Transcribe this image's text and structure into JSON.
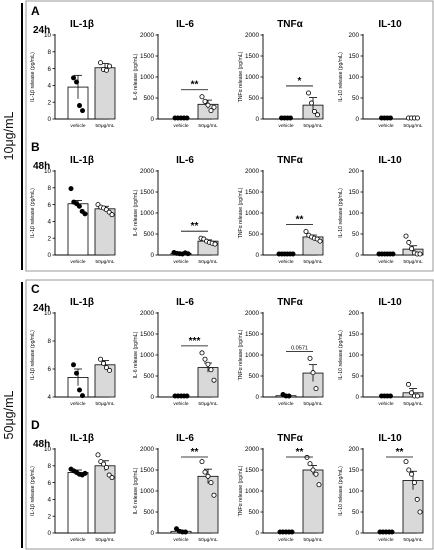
{
  "figure": {
    "side_labels": [
      "10μg/mL",
      "50μg/mL"
    ]
  },
  "chart_data": [
    {
      "panel": "A",
      "time": "24h",
      "type": "bar",
      "charts": [
        {
          "title": "IL-1β",
          "ylabel": "IL-1β release (pg/mL)",
          "ylim": [
            0,
            10
          ],
          "yticks": [
            0,
            2,
            4,
            6,
            8,
            10
          ],
          "categories": [
            "vehicle",
            "50μg/mL"
          ],
          "values": [
            3.8,
            6.1
          ],
          "errors": [
            1.4,
            0.5
          ],
          "points": [
            [
              4.9,
              4.4,
              1.6,
              1.0
            ],
            [
              6.7,
              5.9,
              5.8,
              6.3
            ]
          ],
          "sig": ""
        },
        {
          "title": "IL-6",
          "ylabel": "IL-6 release (pg/mL)",
          "ylim": [
            0,
            2000
          ],
          "yticks": [
            0,
            500,
            1000,
            1500,
            2000
          ],
          "categories": [
            "vehicle",
            "50μg/mL"
          ],
          "values": [
            0,
            350
          ],
          "errors": [
            0,
            100
          ],
          "points": [
            [
              0,
              0,
              0,
              0,
              0
            ],
            [
              530,
              420,
              330,
              200,
              280
            ]
          ],
          "sig": "**"
        },
        {
          "title": "TNFα",
          "ylabel": "TNFα release (pg/mL)",
          "ylim": [
            0,
            2000
          ],
          "yticks": [
            0,
            500,
            1000,
            1500,
            2000
          ],
          "categories": [
            "vehicle",
            "50μg/mL"
          ],
          "values": [
            0,
            330
          ],
          "errors": [
            0,
            180
          ],
          "points": [
            [
              0,
              0,
              0,
              0
            ],
            [
              620,
              380,
              180,
              100
            ]
          ],
          "sig": "*"
        },
        {
          "title": "IL-10",
          "ylabel": "IL-10 release (pg/mL)",
          "ylim": [
            0,
            200
          ],
          "yticks": [
            0,
            50,
            100,
            150,
            200
          ],
          "categories": [
            "vehicle",
            "50μg/mL"
          ],
          "values": [
            0,
            0
          ],
          "errors": [
            0,
            0
          ],
          "points": [
            [
              0,
              0,
              0,
              0
            ],
            [
              0,
              0,
              0,
              0
            ]
          ],
          "sig": ""
        }
      ]
    },
    {
      "panel": "B",
      "time": "48h",
      "type": "bar",
      "charts": [
        {
          "title": "IL-1β",
          "ylabel": "IL-1β release (pg/mL)",
          "ylim": [
            0,
            10
          ],
          "yticks": [
            0,
            2,
            4,
            6,
            8,
            10
          ],
          "categories": [
            "vehicle",
            "50μg/mL"
          ],
          "values": [
            6.1,
            5.5
          ],
          "errors": [
            0.4,
            0.3
          ],
          "points": [
            [
              7.9,
              6.3,
              6.1,
              5.8,
              5.2,
              4.9
            ],
            [
              6.0,
              5.7,
              5.6,
              5.4,
              5.1,
              4.8
            ]
          ],
          "sig": ""
        },
        {
          "title": "IL-6",
          "ylabel": "IL-6 release (pg/mL)",
          "ylim": [
            0,
            2000
          ],
          "yticks": [
            0,
            500,
            1000,
            1500,
            2000
          ],
          "categories": [
            "vehicle",
            "50μg/mL"
          ],
          "values": [
            40,
            330
          ],
          "errors": [
            15,
            30
          ],
          "points": [
            [
              60,
              40,
              30,
              20,
              50,
              30
            ],
            [
              400,
              380,
              330,
              300,
              280,
              260
            ]
          ],
          "sig": "**"
        },
        {
          "title": "TNFα",
          "ylabel": "TNFα release (pg/mL)",
          "ylim": [
            0,
            2000
          ],
          "yticks": [
            0,
            500,
            1000,
            1500,
            2000
          ],
          "categories": [
            "vehicle",
            "50μg/mL"
          ],
          "values": [
            0,
            430
          ],
          "errors": [
            0,
            45
          ],
          "points": [
            [
              0,
              0,
              0,
              0,
              0,
              0
            ],
            [
              560,
              470,
              430,
              400,
              380,
              330
            ]
          ],
          "sig": "**"
        },
        {
          "title": "IL-10",
          "ylabel": "IL-10 release (pg/mL)",
          "ylim": [
            0,
            200
          ],
          "yticks": [
            0,
            50,
            100,
            150,
            200
          ],
          "categories": [
            "vehicle",
            "50μg/mL"
          ],
          "values": [
            0,
            14
          ],
          "errors": [
            0,
            8
          ],
          "points": [
            [
              0,
              0,
              0,
              0,
              0,
              0
            ],
            [
              45,
              30,
              15,
              5,
              0,
              0
            ]
          ],
          "sig": ""
        }
      ]
    },
    {
      "panel": "C",
      "time": "24h",
      "type": "bar",
      "charts": [
        {
          "title": "IL-1β",
          "ylabel": "IL-1β release (pg/mL)",
          "ylim": [
            4,
            10
          ],
          "yticks": [
            4,
            6,
            8,
            10
          ],
          "categories": [
            "vehicle",
            "50μg/mL"
          ],
          "values": [
            5.4,
            6.3
          ],
          "errors": [
            0.6,
            0.3
          ],
          "points": [
            [
              6.3,
              5.7,
              4.5,
              4.1
            ],
            [
              6.7,
              6.4,
              6.1,
              5.9
            ]
          ],
          "sig": ""
        },
        {
          "title": "IL-6",
          "ylabel": "IL-6 release (pg/mL)",
          "ylim": [
            0,
            2000
          ],
          "yticks": [
            0,
            500,
            1000,
            1500,
            2000
          ],
          "categories": [
            "vehicle",
            "50μg/mL"
          ],
          "values": [
            0,
            700
          ],
          "errors": [
            0,
            110
          ],
          "points": [
            [
              0,
              0,
              0,
              0,
              0
            ],
            [
              1050,
              900,
              780,
              650,
              400
            ]
          ],
          "sig": "***"
        },
        {
          "title": "TNFα",
          "ylabel": "TNFα release (pg/mL)",
          "ylim": [
            0,
            2000
          ],
          "yticks": [
            0,
            500,
            1000,
            1500,
            2000
          ],
          "categories": [
            "vehicle",
            "50μg/mL"
          ],
          "values": [
            30,
            570
          ],
          "errors": [
            15,
            200
          ],
          "points": [
            [
              60,
              20,
              10
            ],
            [
              920,
              580,
              200
            ]
          ],
          "sig": "0.0571"
        },
        {
          "title": "IL-10",
          "ylabel": "IL-10 release (pg/mL)",
          "ylim": [
            0,
            200
          ],
          "yticks": [
            0,
            50,
            100,
            150,
            200
          ],
          "categories": [
            "vehicle",
            "50μg/mL"
          ],
          "values": [
            0,
            10
          ],
          "errors": [
            0,
            10
          ],
          "points": [
            [
              0,
              0,
              0,
              0
            ],
            [
              30,
              10,
              0,
              0
            ]
          ],
          "sig": ""
        }
      ]
    },
    {
      "panel": "D",
      "time": "48h",
      "type": "bar",
      "charts": [
        {
          "title": "IL-1β",
          "ylabel": "IL-1β release (pg/mL)",
          "ylim": [
            0,
            10
          ],
          "yticks": [
            0,
            2,
            4,
            6,
            8,
            10
          ],
          "categories": [
            "vehicle",
            "50μg/mL"
          ],
          "values": [
            7.2,
            8.0
          ],
          "errors": [
            0.3,
            0.6
          ],
          "points": [
            [
              7.6,
              7.4,
              7.2,
              7.0,
              6.9,
              7.1
            ],
            [
              9.3,
              8.5,
              8.2,
              7.8,
              6.9,
              6.6
            ]
          ],
          "sig": ""
        },
        {
          "title": "IL-6",
          "ylabel": "IL-6 release (pg/mL)",
          "ylim": [
            0,
            2000
          ],
          "yticks": [
            0,
            500,
            1000,
            1500,
            2000
          ],
          "categories": [
            "vehicle",
            "50μg/mL"
          ],
          "values": [
            40,
            1350
          ],
          "errors": [
            20,
            170
          ],
          "points": [
            [
              100,
              40,
              20,
              10
            ],
            [
              1700,
              1450,
              1350,
              1200,
              900
            ]
          ],
          "sig": "**"
        },
        {
          "title": "TNFα",
          "ylabel": "TNFα release (pg/mL)",
          "ylim": [
            0,
            2000
          ],
          "yticks": [
            0,
            500,
            1000,
            1500,
            2000
          ],
          "categories": [
            "vehicle",
            "50μg/mL"
          ],
          "values": [
            0,
            1500
          ],
          "errors": [
            0,
            110
          ],
          "points": [
            [
              0,
              0,
              0,
              0,
              0
            ],
            [
              1800,
              1650,
              1500,
              1400,
              1150
            ]
          ],
          "sig": "**"
        },
        {
          "title": "IL-10",
          "ylabel": "IL-10 release (pg/mL)",
          "ylim": [
            0,
            200
          ],
          "yticks": [
            0,
            50,
            100,
            150,
            200
          ],
          "categories": [
            "vehicle",
            "50μg/mL"
          ],
          "values": [
            0,
            125
          ],
          "errors": [
            0,
            22
          ],
          "points": [
            [
              0,
              0,
              0,
              0,
              0
            ],
            [
              170,
              150,
              140,
              120,
              80,
              50
            ]
          ],
          "sig": "**"
        }
      ]
    }
  ]
}
